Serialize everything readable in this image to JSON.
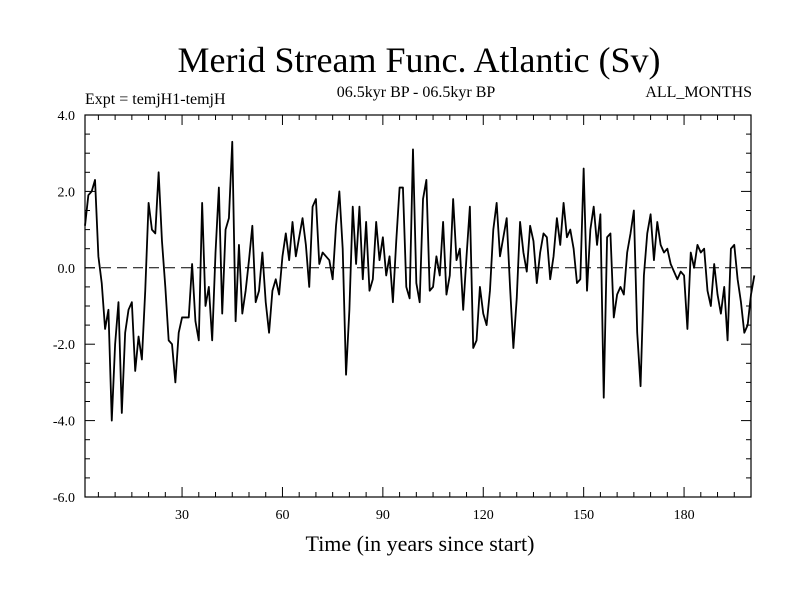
{
  "chart_data": {
    "type": "line",
    "title": "Merid Stream Func. Atlantic (Sv)",
    "subtitle": "06.5kyr BP - 06.5kyr BP",
    "left_label": "Expt = temjH1-temjH",
    "right_label": "ALL_MONTHS",
    "xlabel": "Time (in years since start)",
    "ylabel": "",
    "xlim": [
      1,
      200
    ],
    "ylim": [
      -6.0,
      4.0
    ],
    "xticks": [
      30,
      60,
      90,
      120,
      150,
      180
    ],
    "xtick_labels": [
      "30",
      "60",
      "90",
      "120",
      "150",
      "180"
    ],
    "yticks": [
      -6.0,
      -4.0,
      -2.0,
      0.0,
      2.0,
      4.0
    ],
    "ytick_labels": [
      "-6.0",
      "-4.0",
      "-2.0",
      "0.0",
      "2.0",
      "4.0"
    ],
    "reference_line": {
      "y": 0.0,
      "style": "dashed"
    },
    "grid": false,
    "series": [
      {
        "name": "temjH1-temjH",
        "x_start": 1,
        "x_step": 1,
        "values": [
          1.1,
          1.9,
          2.0,
          2.3,
          0.3,
          -0.4,
          -1.6,
          -1.1,
          -4.0,
          -2.0,
          -0.9,
          -3.8,
          -1.7,
          -1.1,
          -0.9,
          -2.7,
          -1.8,
          -2.4,
          -0.6,
          1.7,
          1.0,
          0.9,
          2.5,
          0.7,
          -0.5,
          -1.9,
          -2.0,
          -3.0,
          -1.7,
          -1.3,
          -1.3,
          -1.3,
          0.1,
          -1.4,
          -1.9,
          1.7,
          -1.0,
          -0.5,
          -1.9,
          0.4,
          2.1,
          -1.2,
          1.0,
          1.3,
          3.3,
          -1.4,
          0.6,
          -1.2,
          -0.6,
          0.2,
          1.1,
          -0.9,
          -0.6,
          0.4,
          -0.9,
          -1.7,
          -0.6,
          -0.3,
          -0.7,
          0.3,
          0.9,
          0.2,
          1.2,
          0.3,
          0.8,
          1.3,
          0.6,
          -0.5,
          1.6,
          1.8,
          0.1,
          0.4,
          0.3,
          0.2,
          -0.3,
          1.1,
          2.0,
          0.5,
          -2.8,
          -1.1,
          1.6,
          0.1,
          1.6,
          -0.3,
          1.2,
          -0.6,
          -0.3,
          1.2,
          0.2,
          0.8,
          -0.2,
          0.3,
          -0.9,
          0.7,
          2.1,
          2.1,
          -0.5,
          -0.8,
          3.1,
          -0.4,
          -0.9,
          1.8,
          2.3,
          -0.6,
          -0.5,
          0.3,
          -0.2,
          1.2,
          -0.7,
          -0.2,
          1.8,
          0.2,
          0.5,
          -1.1,
          0.3,
          1.6,
          -2.1,
          -1.9,
          -0.5,
          -1.2,
          -1.5,
          -0.6,
          1.0,
          1.7,
          0.3,
          0.8,
          1.3,
          -0.5,
          -2.1,
          -0.8,
          1.2,
          0.4,
          -0.1,
          1.1,
          0.7,
          -0.4,
          0.4,
          0.9,
          0.8,
          -0.3,
          0.3,
          1.3,
          0.6,
          1.7,
          0.8,
          1.0,
          0.5,
          -0.4,
          -0.3,
          2.6,
          -0.6,
          1.0,
          1.6,
          0.6,
          1.4,
          -3.4,
          0.8,
          0.9,
          -1.3,
          -0.7,
          -0.5,
          -0.7,
          0.4,
          0.9,
          1.5,
          -1.7,
          -3.1,
          -0.2,
          0.9,
          1.4,
          0.2,
          1.2,
          0.6,
          0.4,
          0.5,
          0.1,
          -0.1,
          -0.3,
          -0.1,
          -0.2,
          -1.6,
          0.4,
          0.0,
          0.6,
          0.4,
          0.5,
          -0.6,
          -1.0,
          0.1,
          -0.7,
          -1.2,
          -0.5,
          -1.9,
          0.5,
          0.6,
          -0.3,
          -0.9,
          -1.7,
          -1.5,
          -0.7,
          -0.2
        ]
      }
    ]
  }
}
